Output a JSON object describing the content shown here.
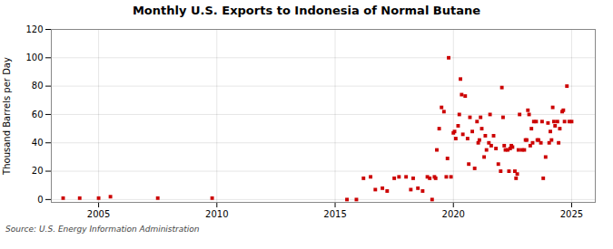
{
  "chart_data": {
    "type": "scatter",
    "title": "Monthly U.S. Exports to Indonesia of Normal Butane",
    "ylabel": "Thousand Barrels per Day",
    "source": "Source: U.S. Energy Information Administration",
    "color": "#cc0000",
    "marker": "square",
    "grid": true,
    "xlim": [
      2003.0,
      2026.0
    ],
    "ylim": [
      -2,
      120
    ],
    "xticks": [
      2005,
      2010,
      2015,
      2020,
      2025
    ],
    "yticks": [
      0,
      20,
      40,
      60,
      80,
      100,
      120
    ],
    "x": [
      2003.5,
      2004.2,
      2005.0,
      2005.5,
      2007.5,
      2009.8,
      2015.5,
      2015.9,
      2016.2,
      2016.5,
      2016.7,
      2017.0,
      2017.2,
      2017.5,
      2017.7,
      2018.0,
      2018.2,
      2018.3,
      2018.5,
      2018.7,
      2018.9,
      2019.0,
      2019.1,
      2019.2,
      2019.25,
      2019.3,
      2019.4,
      2019.5,
      2019.6,
      2019.7,
      2019.75,
      2019.8,
      2019.9,
      2020.0,
      2020.05,
      2020.1,
      2020.2,
      2020.25,
      2020.3,
      2020.35,
      2020.4,
      2020.5,
      2020.6,
      2020.65,
      2020.7,
      2020.8,
      2020.9,
      2021.0,
      2021.05,
      2021.1,
      2021.15,
      2021.2,
      2021.3,
      2021.35,
      2021.4,
      2021.5,
      2021.55,
      2021.6,
      2021.7,
      2021.8,
      2021.9,
      2022.0,
      2022.05,
      2022.1,
      2022.15,
      2022.2,
      2022.3,
      2022.35,
      2022.4,
      2022.45,
      2022.5,
      2022.6,
      2022.65,
      2022.7,
      2022.75,
      2022.8,
      2022.9,
      2023.0,
      2023.05,
      2023.1,
      2023.15,
      2023.2,
      2023.25,
      2023.3,
      2023.35,
      2023.4,
      2023.5,
      2023.55,
      2023.6,
      2023.7,
      2023.75,
      2023.8,
      2023.9,
      2024.0,
      2024.05,
      2024.1,
      2024.15,
      2024.2,
      2024.25,
      2024.3,
      2024.4,
      2024.45,
      2024.5,
      2024.6,
      2024.65,
      2024.7,
      2024.8,
      2024.9,
      2025.0
    ],
    "values": [
      1,
      1,
      1,
      2,
      1,
      1,
      0,
      0,
      15,
      16,
      7,
      8,
      6,
      15,
      16,
      16,
      7,
      15,
      8,
      6,
      16,
      15,
      0,
      16,
      15,
      35,
      50,
      65,
      62,
      16,
      29,
      100,
      16,
      47,
      48,
      43,
      52,
      60,
      85,
      74,
      46,
      73,
      43,
      25,
      58,
      48,
      22,
      55,
      40,
      42,
      58,
      50,
      30,
      45,
      35,
      40,
      60,
      38,
      45,
      36,
      25,
      20,
      79,
      58,
      38,
      35,
      35,
      20,
      36,
      38,
      37,
      20,
      15,
      18,
      35,
      60,
      35,
      35,
      42,
      42,
      63,
      60,
      38,
      50,
      40,
      55,
      55,
      42,
      42,
      40,
      55,
      15,
      30,
      54,
      40,
      48,
      42,
      65,
      55,
      52,
      55,
      40,
      50,
      62,
      63,
      55,
      80,
      55,
      55
    ]
  }
}
